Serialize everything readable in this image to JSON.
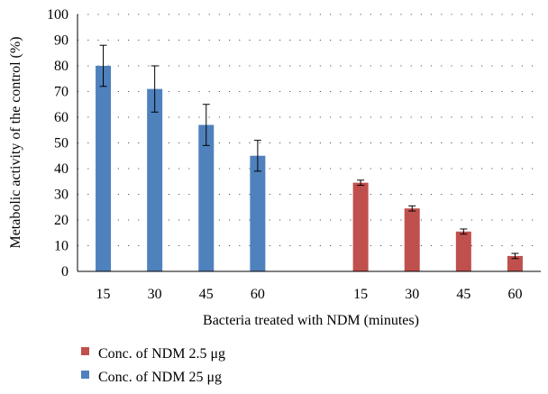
{
  "chart_data": {
    "type": "bar",
    "xlabel": "Bacteria treated with NDM (minutes)",
    "ylabel": "Metabolic activity of the control (%)",
    "ylim": [
      0,
      100
    ],
    "yticks": [
      0,
      10,
      20,
      30,
      40,
      50,
      60,
      70,
      80,
      90,
      100
    ],
    "grid": "horizontal dotted",
    "legend_position": "bottom-left",
    "groups": [
      {
        "name": "Conc. of NDM 25 μg",
        "color": "#4F81BD",
        "categories": [
          "15",
          "30",
          "45",
          "60"
        ],
        "values": [
          80,
          71,
          57,
          45
        ],
        "errors": [
          8,
          9,
          8,
          6
        ]
      },
      {
        "name": "Conc. of NDM 2.5 μg",
        "color": "#C0504D",
        "categories": [
          "15",
          "30",
          "45",
          "60"
        ],
        "values": [
          34.5,
          24.5,
          15.5,
          6
        ],
        "errors": [
          1,
          1,
          1,
          1
        ]
      }
    ],
    "legend": [
      {
        "name": "Conc. of NDM 2.5 μg",
        "color": "#C0504D"
      },
      {
        "name": "Conc. of NDM 25 μg",
        "color": "#4F81BD"
      }
    ]
  }
}
